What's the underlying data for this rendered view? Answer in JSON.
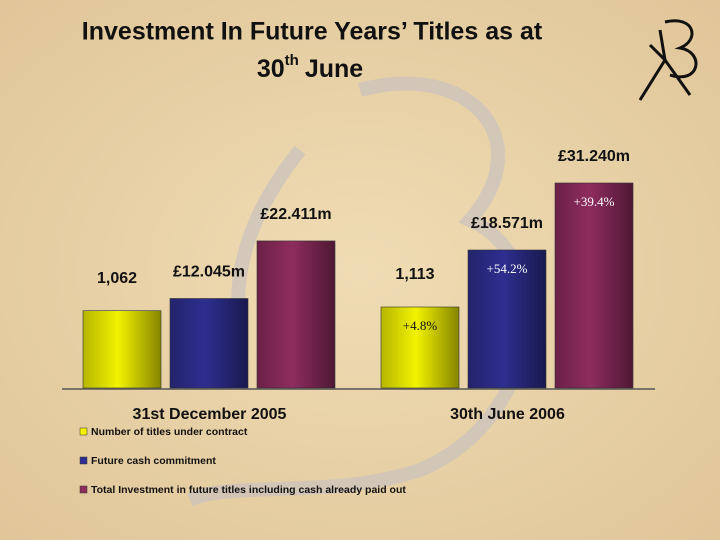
{
  "chart_data": {
    "type": "bar",
    "title": {
      "line1": "Investment In Future Years’ Titles as at",
      "line2": "30",
      "superscript": "th",
      "line2_end": "June"
    },
    "categories": [
      "31st December 2005",
      "30th June 2006"
    ],
    "series": [
      {
        "name": "Number of titles under contract",
        "color": "#f2f200",
        "values": [
          1062,
          1113
        ],
        "value_labels": [
          "1,062",
          "1,113"
        ],
        "change_labels": [
          null,
          "+4.8%"
        ]
      },
      {
        "name": "Future cash commitment",
        "color": "#2e2e90",
        "values": [
          12.045,
          18.571
        ],
        "value_labels": [
          "£12.045m",
          "£18.571m"
        ],
        "change_labels": [
          null,
          "+54.2%"
        ]
      },
      {
        "name": "Total Investment in future titles including cash already paid out",
        "color": "#8e2c5e",
        "values": [
          22.411,
          31.24
        ],
        "value_labels": [
          "£22.411m",
          "£31.240m"
        ],
        "change_labels": [
          null,
          "+39.4%"
        ]
      }
    ]
  }
}
